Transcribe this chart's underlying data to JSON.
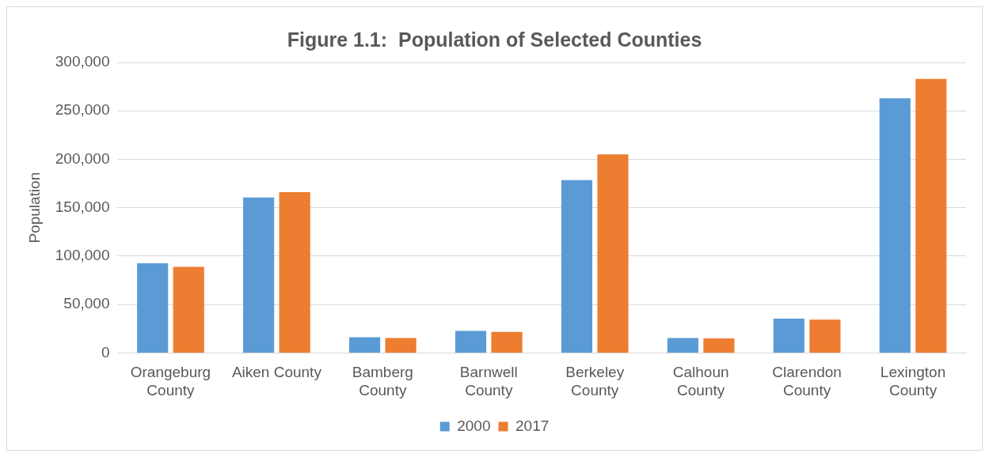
{
  "chart_data": {
    "type": "bar",
    "title": "Figure 1.1:  Population of Selected Counties",
    "ylabel": "Population",
    "categories": [
      "Orangeburg County",
      "Aiken County",
      "Bamberg County",
      "Barnwell County",
      "Berkeley County",
      "Calhoun County",
      "Clarendon County",
      "Lexington County"
    ],
    "series": [
      {
        "name": "2000",
        "color": "#5b9bd5",
        "values": [
          92500,
          160500,
          16300,
          22700,
          178600,
          15400,
          35400,
          263000
        ]
      },
      {
        "name": "2017",
        "color": "#ed7d31",
        "values": [
          89000,
          166000,
          15400,
          21800,
          205000,
          15000,
          34500,
          283000
        ]
      }
    ],
    "ylim": [
      0,
      300000
    ],
    "yticks": [
      {
        "value": 0,
        "label": "0"
      },
      {
        "value": 50000,
        "label": "50,000"
      },
      {
        "value": 100000,
        "label": "100,000"
      },
      {
        "value": 150000,
        "label": "150,000"
      },
      {
        "value": 200000,
        "label": "200,000"
      },
      {
        "value": 250000,
        "label": "250,000"
      },
      {
        "value": 300000,
        "label": "300,000"
      }
    ],
    "grid": "y",
    "legend": "bottom"
  }
}
